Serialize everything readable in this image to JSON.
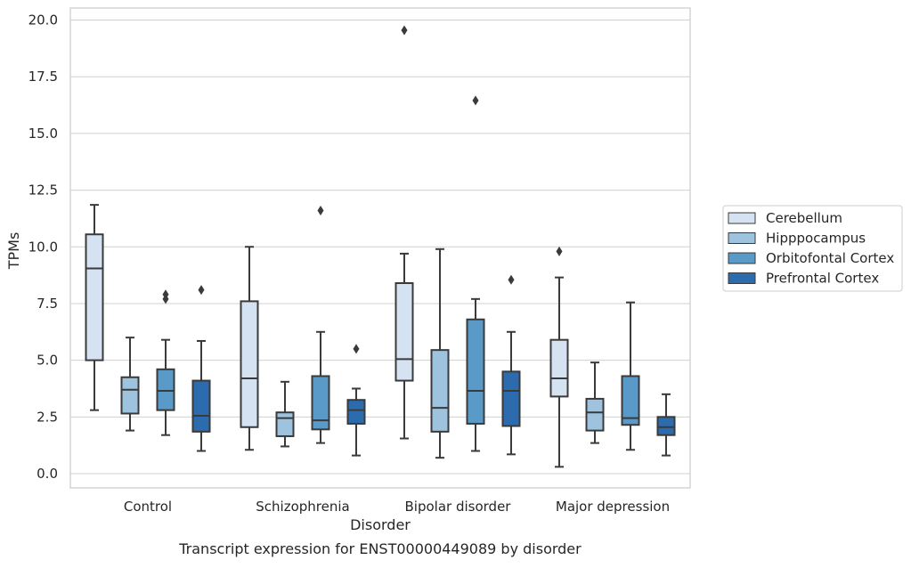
{
  "caption": "Transcript expression for ENST00000449089 by disorder",
  "chart_data": {
    "type": "box",
    "title": "",
    "xlabel": "Disorder",
    "ylabel": "TPMs",
    "ylim": [
      -0.6,
      20.5
    ],
    "yticks": [
      0.0,
      2.5,
      5.0,
      7.5,
      10.0,
      12.5,
      15.0,
      17.5,
      20.0
    ],
    "ytick_labels": [
      "0.0",
      "2.5",
      "5.0",
      "7.5",
      "10.0",
      "12.5",
      "15.0",
      "17.5",
      "20.0"
    ],
    "grid": "horizontal",
    "legend_position": "right",
    "categories": [
      "Control",
      "Schizophrenia",
      "Bipolar disorder",
      "Major depression"
    ],
    "series": [
      {
        "name": "Cerebellum",
        "color": "#d4e2f1",
        "boxes": [
          {
            "whisker_low": 2.8,
            "q1": 5.0,
            "median": 9.05,
            "q3": 10.55,
            "whisker_high": 11.85,
            "outliers": []
          },
          {
            "whisker_low": 1.05,
            "q1": 2.05,
            "median": 4.2,
            "q3": 7.6,
            "whisker_high": 10.0,
            "outliers": []
          },
          {
            "whisker_low": 1.55,
            "q1": 4.1,
            "median": 5.05,
            "q3": 8.4,
            "whisker_high": 9.7,
            "outliers": [
              19.55
            ]
          },
          {
            "whisker_low": 0.3,
            "q1": 3.4,
            "median": 4.2,
            "q3": 5.9,
            "whisker_high": 8.65,
            "outliers": [
              9.8
            ]
          }
        ]
      },
      {
        "name": "Hipppocampus",
        "color": "#9dc3de",
        "boxes": [
          {
            "whisker_low": 1.9,
            "q1": 2.65,
            "median": 3.7,
            "q3": 4.25,
            "whisker_high": 6.0,
            "outliers": []
          },
          {
            "whisker_low": 1.2,
            "q1": 1.65,
            "median": 2.45,
            "q3": 2.7,
            "whisker_high": 4.05,
            "outliers": []
          },
          {
            "whisker_low": 0.7,
            "q1": 1.85,
            "median": 2.9,
            "q3": 5.45,
            "whisker_high": 9.9,
            "outliers": []
          },
          {
            "whisker_low": 1.35,
            "q1": 1.9,
            "median": 2.7,
            "q3": 3.3,
            "whisker_high": 4.9,
            "outliers": []
          }
        ]
      },
      {
        "name": "Orbitofontal Cortex",
        "color": "#5a9ac9",
        "boxes": [
          {
            "whisker_low": 1.7,
            "q1": 2.8,
            "median": 3.65,
            "q3": 4.6,
            "whisker_high": 5.9,
            "outliers": [
              7.7,
              7.9
            ]
          },
          {
            "whisker_low": 1.35,
            "q1": 1.95,
            "median": 2.35,
            "q3": 4.3,
            "whisker_high": 6.25,
            "outliers": [
              11.6
            ]
          },
          {
            "whisker_low": 1.0,
            "q1": 2.2,
            "median": 3.65,
            "q3": 6.8,
            "whisker_high": 7.7,
            "outliers": [
              16.45
            ]
          },
          {
            "whisker_low": 1.05,
            "q1": 2.15,
            "median": 2.45,
            "q3": 4.3,
            "whisker_high": 7.55,
            "outliers": []
          }
        ]
      },
      {
        "name": "Prefrontal Cortex",
        "color": "#2c6cae",
        "boxes": [
          {
            "whisker_low": 1.0,
            "q1": 1.85,
            "median": 2.55,
            "q3": 4.1,
            "whisker_high": 5.85,
            "outliers": [
              8.1
            ]
          },
          {
            "whisker_low": 0.8,
            "q1": 2.2,
            "median": 2.8,
            "q3": 3.25,
            "whisker_high": 3.75,
            "outliers": [
              5.5
            ]
          },
          {
            "whisker_low": 0.85,
            "q1": 2.1,
            "median": 3.65,
            "q3": 4.5,
            "whisker_high": 6.25,
            "outliers": [
              8.55
            ]
          },
          {
            "whisker_low": 0.8,
            "q1": 1.7,
            "median": 2.05,
            "q3": 2.5,
            "whisker_high": 3.5,
            "outliers": []
          }
        ]
      }
    ]
  }
}
